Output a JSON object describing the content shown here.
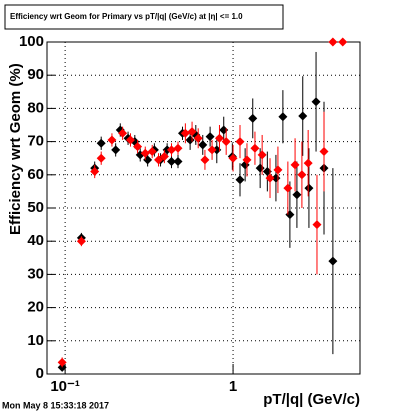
{
  "chart_data": {
    "type": "scatter",
    "title": "Efficiency wrt Geom for Primary vs pT/|q| (GeV/c) at |η| <= 1.0",
    "x_label": "pT/|q| (GeV/c)",
    "y_label": "Efficiency wrt Geom (%)",
    "footer": "Mon May  8 15:33:18 2017",
    "log_x": true,
    "grid": true,
    "xlim": [
      0.078,
      5.7
    ],
    "ylim": [
      0,
      100
    ],
    "xticks": [
      {
        "value": 0.1,
        "label": "10⁻¹"
      },
      1
    ],
    "yticks": [
      0,
      10,
      20,
      30,
      40,
      50,
      60,
      70,
      80,
      90,
      100
    ],
    "series": [
      {
        "color": "#000000",
        "x": [
          0.096,
          0.125,
          0.15,
          0.164,
          0.2,
          0.213,
          0.237,
          0.26,
          0.28,
          0.31,
          0.34,
          0.37,
          0.405,
          0.43,
          0.47,
          0.5,
          0.555,
          0.6,
          0.66,
          0.73,
          0.8,
          0.88,
          0.99,
          1.1,
          1.18,
          1.31,
          1.45,
          1.6,
          1.8,
          1.98,
          2.18,
          2.4,
          2.6,
          2.83,
          3.12,
          3.48,
          3.93
        ],
        "values": [
          2,
          41,
          62,
          69.5,
          67.5,
          73.5,
          71,
          70,
          66,
          64.5,
          67.5,
          64.5,
          67.5,
          64,
          64,
          72.5,
          70.5,
          72,
          69,
          71.5,
          67.5,
          73.5,
          65.5,
          58.5,
          63,
          77,
          62,
          61,
          59,
          77.5,
          48,
          54,
          77.7,
          56,
          82,
          62,
          34
        ],
        "errors": [
          1,
          1.5,
          2,
          2,
          2,
          2,
          2,
          2,
          2,
          2,
          2,
          2,
          2,
          2,
          2,
          2,
          3,
          3,
          3,
          3,
          4,
          4,
          4,
          5,
          5,
          6,
          6,
          6,
          7,
          8,
          10,
          10,
          12,
          12,
          15,
          20,
          28
        ]
      },
      {
        "color": "#ff0000",
        "x": [
          0.096,
          0.125,
          0.15,
          0.164,
          0.19,
          0.22,
          0.245,
          0.27,
          0.3,
          0.33,
          0.36,
          0.39,
          0.43,
          0.47,
          0.52,
          0.57,
          0.62,
          0.68,
          0.75,
          0.83,
          0.91,
          1.0,
          1.1,
          1.21,
          1.35,
          1.49,
          1.66,
          1.85,
          2.12,
          2.34,
          2.57,
          2.8,
          3.16,
          3.48,
          3.93,
          4.5
        ],
        "values": [
          3.5,
          40,
          61,
          65,
          70.5,
          72.5,
          70.5,
          68.5,
          66.5,
          67,
          64.5,
          65.5,
          67.5,
          68,
          72.5,
          73,
          71,
          64.5,
          67.5,
          71,
          70,
          65,
          70,
          64.5,
          68,
          66,
          59,
          61.5,
          56,
          63,
          60,
          63.5,
          45,
          67,
          100,
          100
        ],
        "errors": [
          1.5,
          1.5,
          2,
          2,
          2,
          2,
          2,
          2,
          2,
          2,
          2,
          2,
          2,
          2,
          3,
          3,
          3,
          3,
          3,
          4,
          4,
          4,
          5,
          5,
          5,
          6,
          6,
          7,
          8,
          8,
          10,
          10,
          15,
          12,
          0,
          0
        ]
      }
    ]
  }
}
